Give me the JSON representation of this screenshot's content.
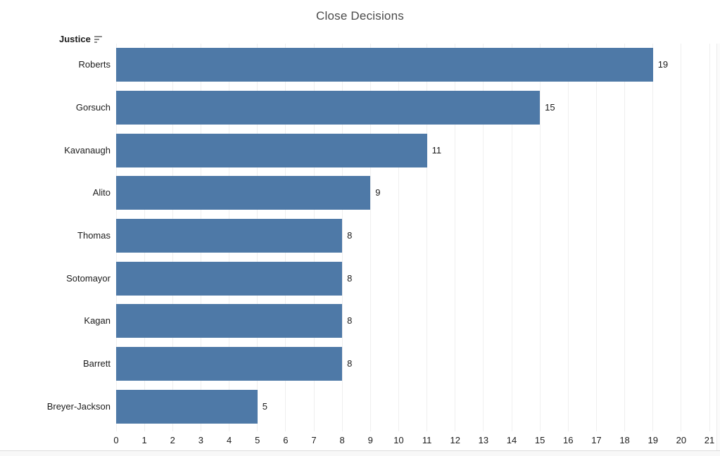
{
  "title": "Close Decisions",
  "column_header": {
    "label": "Justice",
    "sort_icon": "sort-descending-icon"
  },
  "chart_data": {
    "type": "bar",
    "orientation": "horizontal",
    "title": "Close Decisions",
    "xlabel": "",
    "ylabel": "Justice",
    "categories": [
      "Roberts",
      "Gorsuch",
      "Kavanaugh",
      "Alito",
      "Thomas",
      "Sotomayor",
      "Kagan",
      "Barrett",
      "Breyer-Jackson"
    ],
    "values": [
      19,
      15,
      11,
      9,
      8,
      8,
      8,
      8,
      5
    ],
    "xlim": [
      0,
      21
    ],
    "xticks": [
      0,
      1,
      2,
      3,
      4,
      5,
      6,
      7,
      8,
      9,
      10,
      11,
      12,
      13,
      14,
      15,
      16,
      17,
      18,
      19,
      20,
      21
    ],
    "grid": true,
    "legend": "none",
    "value_labels_shown": true
  },
  "colors": {
    "bar": "#4e79a7",
    "title_text": "#4a4a4a",
    "label_text": "#1b1b1b",
    "gridline": "#efefef",
    "sort_icon": "#8a8a8a",
    "background": "#ffffff"
  }
}
